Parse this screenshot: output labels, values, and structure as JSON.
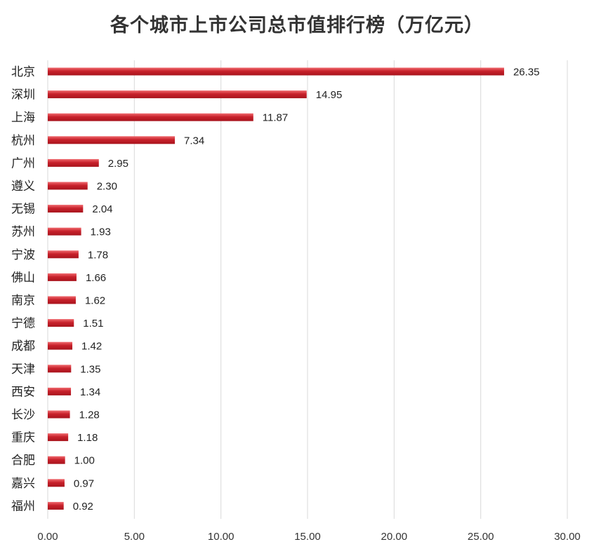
{
  "chart_data": {
    "type": "bar",
    "orientation": "horizontal",
    "title": "各个城市上市公司总市值排行榜（万亿元）",
    "categories": [
      "北京",
      "深圳",
      "上海",
      "杭州",
      "广州",
      "遵义",
      "无锡",
      "苏州",
      "宁波",
      "佛山",
      "南京",
      "宁德",
      "成都",
      "天津",
      "西安",
      "长沙",
      "重庆",
      "合肥",
      "嘉兴",
      "福州"
    ],
    "values": [
      26.35,
      14.95,
      11.87,
      7.34,
      2.95,
      2.3,
      2.04,
      1.93,
      1.78,
      1.66,
      1.62,
      1.51,
      1.42,
      1.35,
      1.34,
      1.28,
      1.18,
      1.0,
      0.97,
      0.92
    ],
    "value_labels": [
      "26.35",
      "14.95",
      "11.87",
      "7.34",
      "2.95",
      "2.30",
      "2.04",
      "1.93",
      "1.78",
      "1.66",
      "1.62",
      "1.51",
      "1.42",
      "1.35",
      "1.34",
      "1.28",
      "1.18",
      "1.00",
      "0.97",
      "0.92"
    ],
    "xlim": [
      0,
      30
    ],
    "xticks": [
      0,
      5,
      10,
      15,
      20,
      25,
      30
    ],
    "xtick_labels": [
      "0.00",
      "5.00",
      "10.00",
      "15.00",
      "20.00",
      "25.00",
      "30.00"
    ],
    "grid": "vertical",
    "legend": "none",
    "bar_color": "#c8212b",
    "bar_highlight": "#f06a6f",
    "grid_color": "#d9d9d9"
  }
}
